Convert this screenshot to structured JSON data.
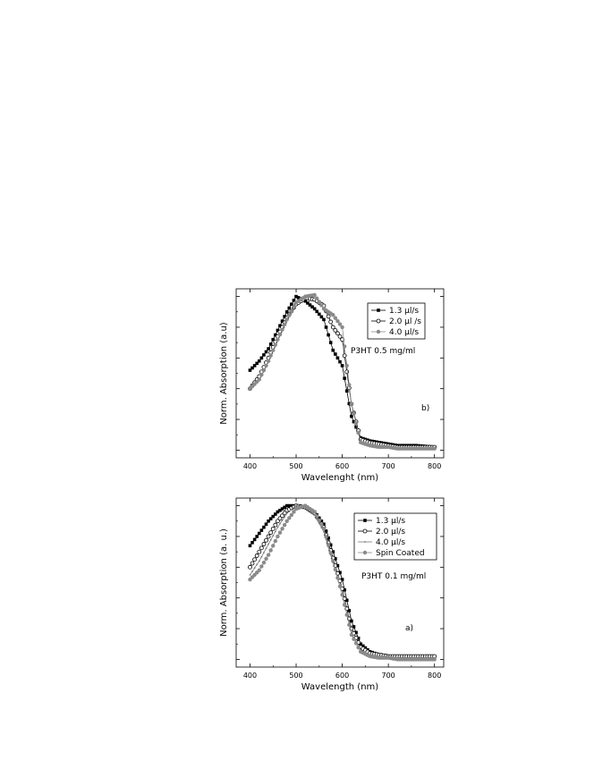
{
  "chart_data": [
    {
      "type": "line",
      "panel": "b",
      "xlabel": "Wavelenght (nm)",
      "ylabel": "Norm. Absorption (a.u)",
      "xlim": [
        370,
        820
      ],
      "ylim": [
        -0.05,
        1.05
      ],
      "xticks": [
        400,
        500,
        600,
        700,
        800
      ],
      "y_tick_labels_shown": false,
      "annotations": [
        "P3HT 0.5 mg/ml",
        "b)"
      ],
      "legend_placement": "top-right",
      "series": [
        {
          "name": "1.3 µl/s",
          "marker": "filled-square",
          "color": "#000000",
          "points": [
            [
              400,
              0.52
            ],
            [
              420,
              0.58
            ],
            [
              440,
              0.66
            ],
            [
              460,
              0.78
            ],
            [
              480,
              0.9
            ],
            [
              500,
              1.0
            ],
            [
              520,
              0.97
            ],
            [
              540,
              0.92
            ],
            [
              560,
              0.85
            ],
            [
              580,
              0.65
            ],
            [
              600,
              0.55
            ],
            [
              620,
              0.22
            ],
            [
              640,
              0.08
            ],
            [
              660,
              0.06
            ],
            [
              680,
              0.05
            ],
            [
              700,
              0.04
            ],
            [
              720,
              0.03
            ],
            [
              760,
              0.03
            ],
            [
              800,
              0.02
            ]
          ]
        },
        {
          "name": "2.0 µl /s",
          "marker": "open-circle",
          "color": "#000000",
          "points": [
            [
              400,
              0.4
            ],
            [
              420,
              0.48
            ],
            [
              440,
              0.6
            ],
            [
              460,
              0.74
            ],
            [
              480,
              0.86
            ],
            [
              500,
              0.95
            ],
            [
              520,
              0.99
            ],
            [
              540,
              0.98
            ],
            [
              560,
              0.94
            ],
            [
              580,
              0.8
            ],
            [
              600,
              0.72
            ],
            [
              620,
              0.3
            ],
            [
              640,
              0.07
            ],
            [
              660,
              0.05
            ],
            [
              680,
              0.04
            ],
            [
              700,
              0.03
            ],
            [
              720,
              0.02
            ],
            [
              760,
              0.02
            ],
            [
              800,
              0.02
            ]
          ]
        },
        {
          "name": "4.0 µl/s",
          "marker": "filled-circle-gray",
          "color": "#8a8a8a",
          "points": [
            [
              400,
              0.4
            ],
            [
              420,
              0.46
            ],
            [
              440,
              0.58
            ],
            [
              460,
              0.72
            ],
            [
              480,
              0.85
            ],
            [
              500,
              0.96
            ],
            [
              520,
              1.0
            ],
            [
              540,
              1.01
            ],
            [
              560,
              0.92
            ],
            [
              580,
              0.88
            ],
            [
              600,
              0.8
            ],
            [
              620,
              0.3
            ],
            [
              640,
              0.05
            ],
            [
              660,
              0.03
            ],
            [
              680,
              0.02
            ],
            [
              700,
              0.02
            ],
            [
              720,
              0.01
            ],
            [
              760,
              0.01
            ],
            [
              800,
              0.01
            ]
          ]
        }
      ]
    },
    {
      "type": "line",
      "panel": "a",
      "xlabel": "Wavelength (nm)",
      "ylabel": "Norm. Absorption (a. u.)",
      "xlim": [
        370,
        820
      ],
      "ylim": [
        -0.05,
        1.05
      ],
      "xticks": [
        400,
        500,
        600,
        700,
        800
      ],
      "y_tick_labels_shown": false,
      "annotations": [
        "P3HT 0.1 mg/ml",
        "a)"
      ],
      "legend_placement": "top-right",
      "series": [
        {
          "name": "1.3 µl/s",
          "marker": "filled-square",
          "color": "#000000",
          "points": [
            [
              400,
              0.74
            ],
            [
              420,
              0.82
            ],
            [
              440,
              0.9
            ],
            [
              460,
              0.96
            ],
            [
              480,
              1.0
            ],
            [
              500,
              1.0
            ],
            [
              520,
              0.99
            ],
            [
              540,
              0.96
            ],
            [
              560,
              0.88
            ],
            [
              580,
              0.7
            ],
            [
              600,
              0.52
            ],
            [
              620,
              0.25
            ],
            [
              640,
              0.1
            ],
            [
              660,
              0.05
            ],
            [
              680,
              0.03
            ],
            [
              700,
              0.02
            ],
            [
              720,
              0.01
            ],
            [
              760,
              0.01
            ],
            [
              800,
              0.01
            ]
          ]
        },
        {
          "name": "2.0 µl/s",
          "marker": "open-circle",
          "color": "#000000",
          "points": [
            [
              400,
              0.6
            ],
            [
              420,
              0.7
            ],
            [
              440,
              0.8
            ],
            [
              460,
              0.9
            ],
            [
              480,
              0.97
            ],
            [
              500,
              1.0
            ],
            [
              520,
              0.99
            ],
            [
              540,
              0.95
            ],
            [
              560,
              0.86
            ],
            [
              580,
              0.66
            ],
            [
              600,
              0.46
            ],
            [
              620,
              0.2
            ],
            [
              640,
              0.08
            ],
            [
              660,
              0.04
            ],
            [
              680,
              0.03
            ],
            [
              700,
              0.02
            ],
            [
              720,
              0.02
            ],
            [
              760,
              0.02
            ],
            [
              800,
              0.02
            ]
          ]
        },
        {
          "name": "4.0 µl/s",
          "marker": "line-gray",
          "color": "#777777",
          "points": [
            [
              400,
              0.55
            ],
            [
              420,
              0.64
            ],
            [
              440,
              0.75
            ],
            [
              460,
              0.86
            ],
            [
              480,
              0.95
            ],
            [
              500,
              1.0
            ],
            [
              520,
              0.99
            ],
            [
              540,
              0.94
            ],
            [
              560,
              0.83
            ],
            [
              580,
              0.63
            ],
            [
              600,
              0.42
            ],
            [
              620,
              0.17
            ],
            [
              640,
              0.06
            ],
            [
              660,
              0.03
            ],
            [
              680,
              0.02
            ],
            [
              700,
              0.02
            ],
            [
              720,
              0.01
            ],
            [
              760,
              0.01
            ],
            [
              800,
              0.01
            ]
          ]
        },
        {
          "name": "Spin Coated",
          "marker": "filled-circle-gray",
          "color": "#8a8a8a",
          "points": [
            [
              400,
              0.52
            ],
            [
              420,
              0.58
            ],
            [
              440,
              0.68
            ],
            [
              460,
              0.8
            ],
            [
              480,
              0.9
            ],
            [
              500,
              0.98
            ],
            [
              520,
              1.0
            ],
            [
              540,
              0.96
            ],
            [
              560,
              0.85
            ],
            [
              580,
              0.64
            ],
            [
              600,
              0.42
            ],
            [
              620,
              0.16
            ],
            [
              640,
              0.05
            ],
            [
              660,
              0.02
            ],
            [
              680,
              0.01
            ],
            [
              700,
              0.01
            ],
            [
              720,
              0.0
            ],
            [
              760,
              0.0
            ],
            [
              800,
              0.0
            ]
          ]
        }
      ]
    }
  ]
}
